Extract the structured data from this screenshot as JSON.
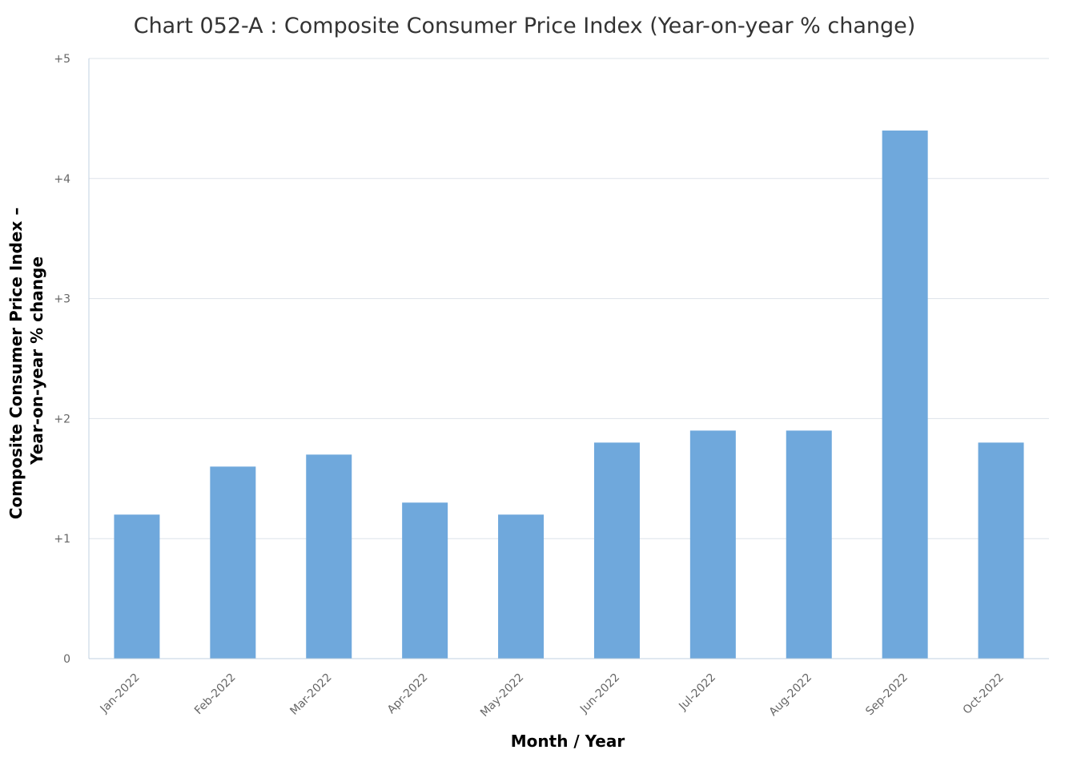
{
  "chart_data": {
    "type": "bar",
    "title": "Chart 052-A : Composite Consumer Price Index (Year-on-year % change)",
    "xlabel": "Month / Year",
    "ylabel_lines": [
      "Composite Consumer Price Index –",
      "Year-on-year % change"
    ],
    "categories": [
      "Jan-2022",
      "Feb-2022",
      "Mar-2022",
      "Apr-2022",
      "May-2022",
      "Jun-2022",
      "Jul-2022",
      "Aug-2022",
      "Sep-2022",
      "Oct-2022"
    ],
    "values": [
      1.2,
      1.6,
      1.7,
      1.3,
      1.2,
      1.8,
      1.9,
      1.9,
      4.4,
      1.8
    ],
    "ylim": [
      0,
      5
    ],
    "yticks": [
      0,
      1,
      2,
      3,
      4,
      5
    ],
    "ytick_labels": [
      "0",
      "+1",
      "+2",
      "+3",
      "+4",
      "+5"
    ],
    "grid": true,
    "bar_color": "#6fa8dc"
  }
}
